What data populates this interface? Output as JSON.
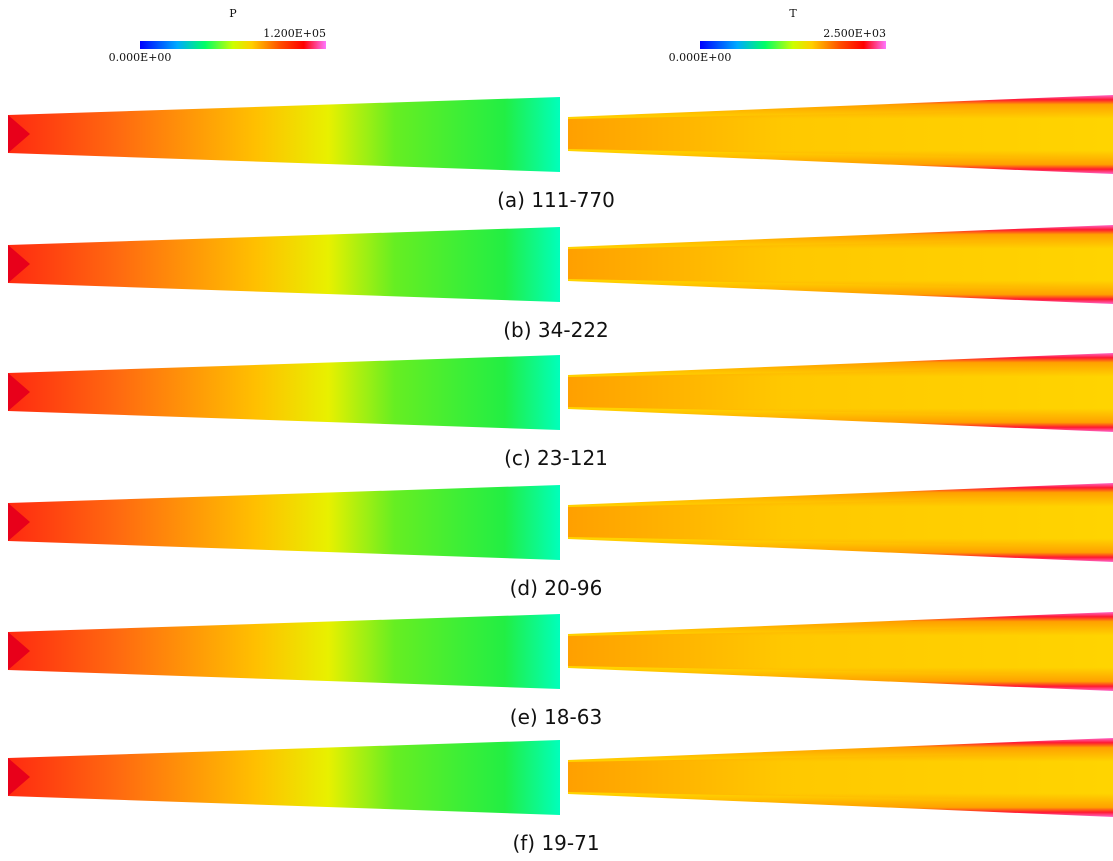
{
  "colorbars": [
    {
      "title": "P",
      "min_label": "0.000E+00",
      "max_label": "1.200E+05"
    },
    {
      "title": "T",
      "min_label": "0.000E+00",
      "max_label": "2.500E+03"
    }
  ],
  "panels": [
    {
      "caption": "(a) 111-770"
    },
    {
      "caption": "(b) 34-222"
    },
    {
      "caption": "(c) 23-121"
    },
    {
      "caption": "(d) 20-96"
    },
    {
      "caption": "(e) 18-63"
    },
    {
      "caption": "(f) 19-71"
    }
  ]
}
